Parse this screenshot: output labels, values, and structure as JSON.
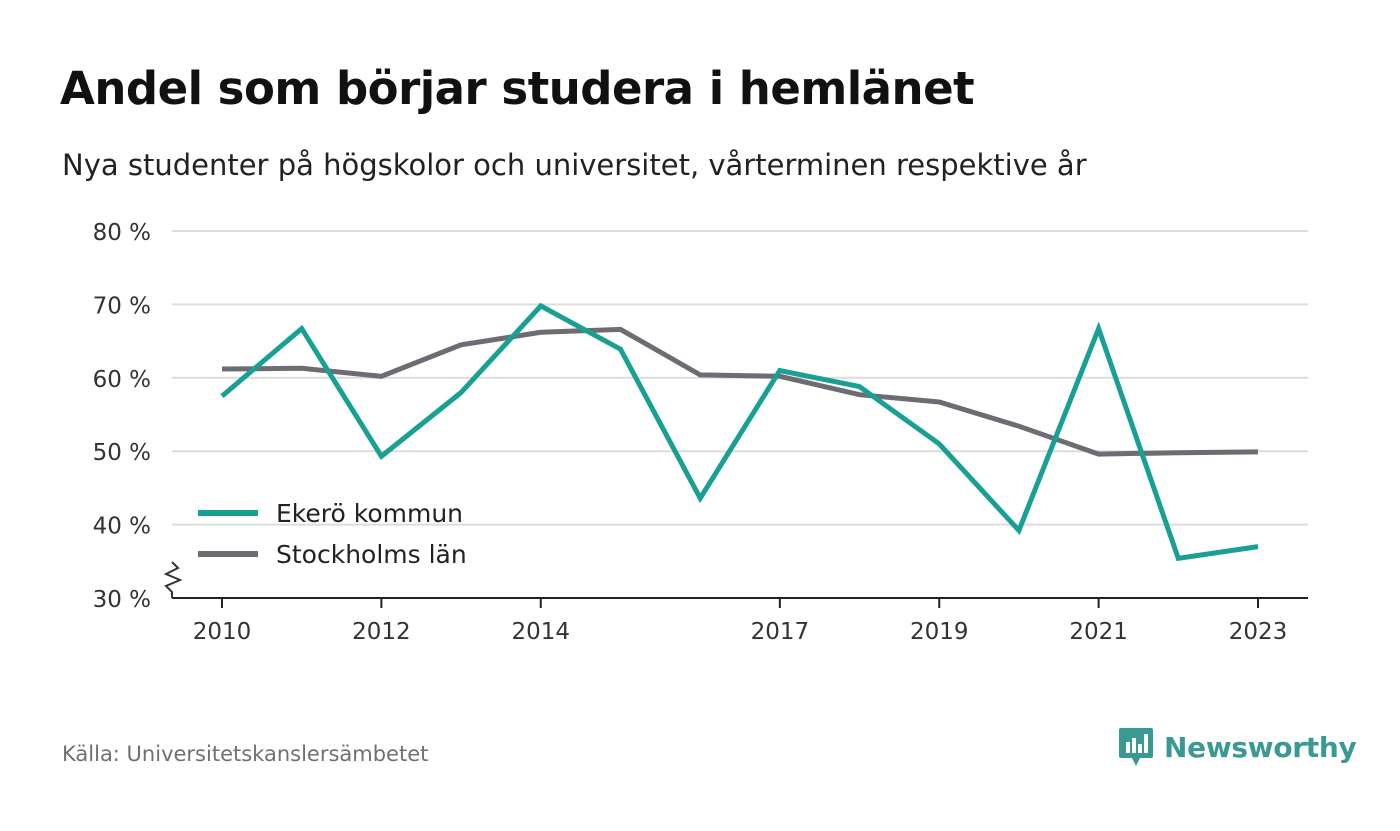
{
  "title": "Andel som börjar studera i hemlänet",
  "subtitle": "Nya studenter på högskolor och universitet, vårterminen respektive år",
  "source": "Källa: Universitetskanslersämbetet",
  "brand": {
    "name": "Newsworthy",
    "icon": "newsworthy-logo-icon",
    "color": "#3a9a93"
  },
  "chart_data": {
    "type": "line",
    "x": [
      2010,
      2011,
      2012,
      2013,
      2014,
      2015,
      2016,
      2017,
      2018,
      2019,
      2020,
      2021,
      2022,
      2023
    ],
    "x_tick_labels": [
      "2010",
      "2012",
      "2014",
      "2017",
      "2019",
      "2021",
      "2023"
    ],
    "x_tick_values": [
      2010,
      2012,
      2014,
      2017,
      2019,
      2021,
      2023
    ],
    "y_ticks": [
      30,
      40,
      50,
      60,
      70,
      80
    ],
    "y_tick_labels": [
      "30 %",
      "40 %",
      "50 %",
      "60 %",
      "70 %",
      "80 %"
    ],
    "ylim": [
      30,
      80
    ],
    "axis_break": true,
    "grid": true,
    "legend_position": "bottom-left",
    "series": [
      {
        "name": "Ekerö kommun",
        "color": "#17a093",
        "values": [
          57.5,
          66.7,
          49.3,
          58.0,
          69.8,
          63.9,
          43.6,
          61.0,
          58.8,
          51.0,
          39.2,
          66.7,
          35.4,
          37.0
        ]
      },
      {
        "name": "Stockholms län",
        "color": "#6e6c73",
        "values": [
          61.2,
          61.3,
          60.2,
          64.5,
          66.2,
          66.6,
          60.4,
          60.2,
          57.7,
          56.7,
          53.4,
          49.6,
          49.8,
          49.9
        ]
      }
    ]
  }
}
